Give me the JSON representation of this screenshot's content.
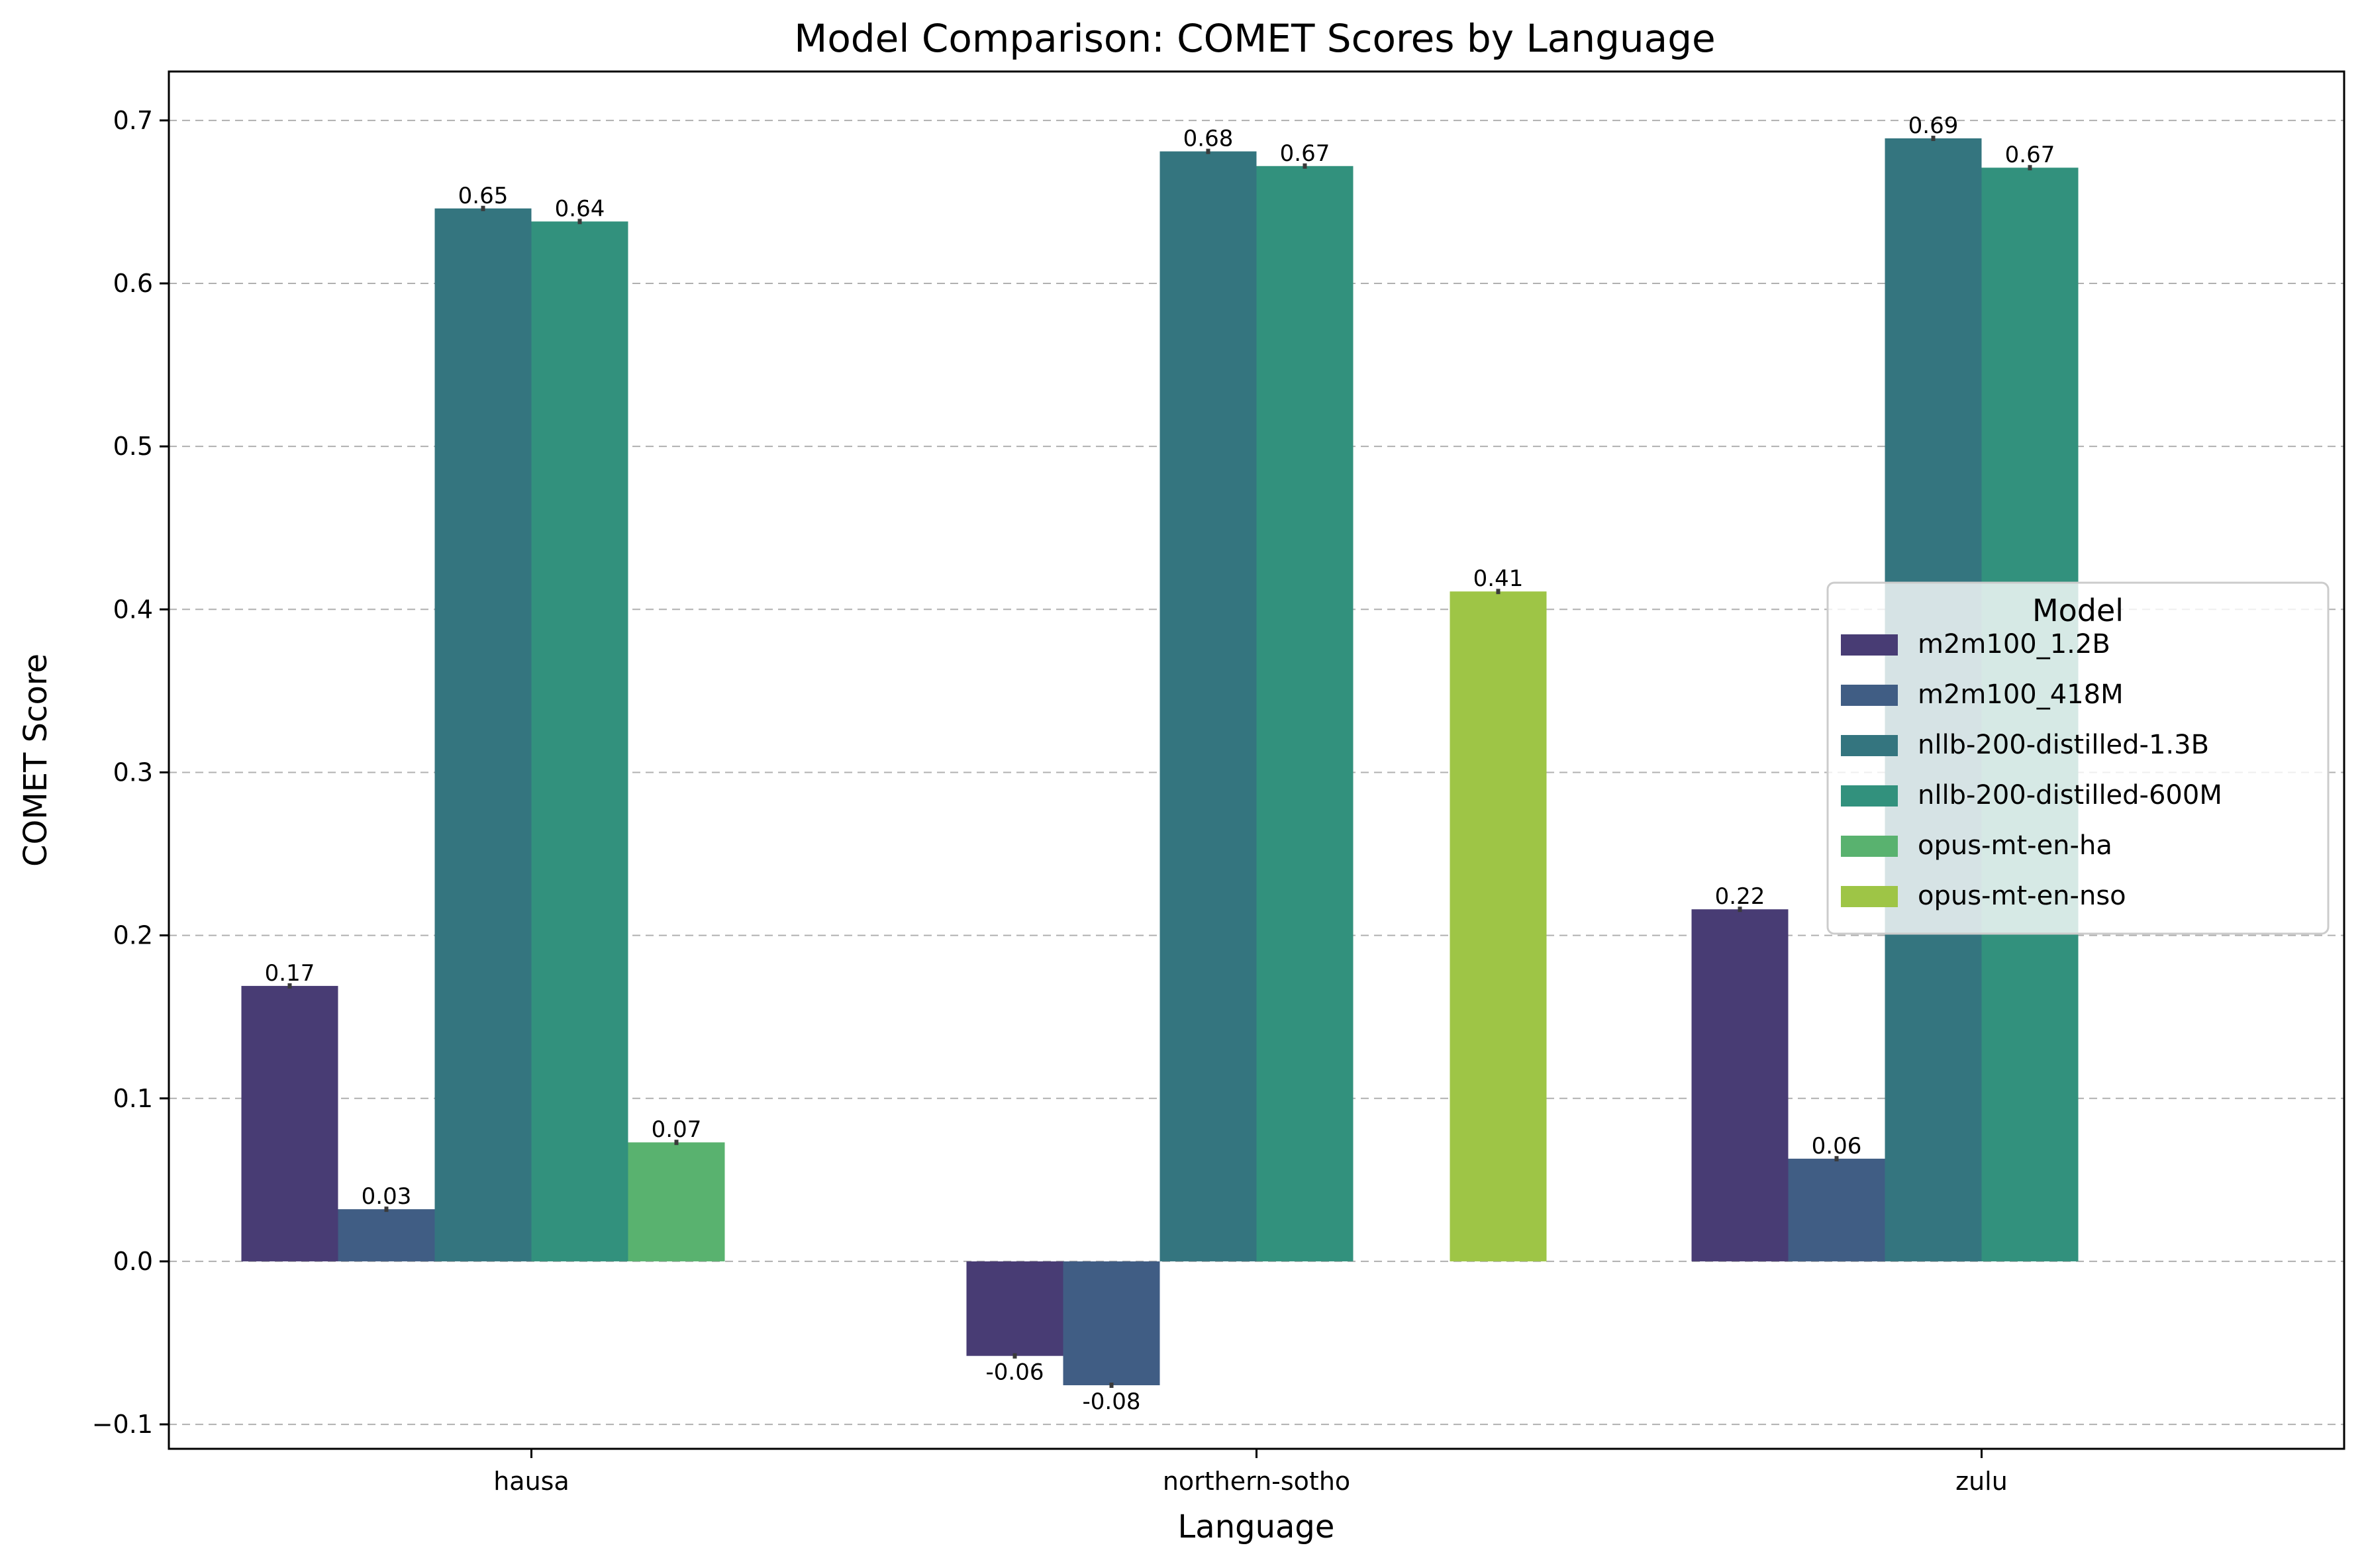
{
  "chart_data": {
    "type": "bar",
    "title": "Model Comparison: COMET Scores by Language",
    "xlabel": "Language",
    "ylabel": "COMET Score",
    "categories": [
      "hausa",
      "northern-sotho",
      "zulu"
    ],
    "ylim": [
      -0.115,
      0.73
    ],
    "yticks": [
      -0.1,
      0.0,
      0.1,
      0.2,
      0.3,
      0.4,
      0.5,
      0.6,
      0.7
    ],
    "ytick_labels": [
      "−0.1",
      "0.0",
      "0.1",
      "0.2",
      "0.3",
      "0.4",
      "0.5",
      "0.6",
      "0.7"
    ],
    "grid": "horizontal dashed",
    "legend": {
      "title": "Model",
      "placement": "center-right"
    },
    "series": [
      {
        "name": "m2m100_1.2B",
        "color": "#483c74",
        "values": [
          0.169,
          -0.058,
          0.216
        ],
        "labels": [
          "0.17",
          "-0.06",
          "0.22"
        ]
      },
      {
        "name": "m2m100_418M",
        "color": "#405d84",
        "values": [
          0.032,
          -0.076,
          0.063
        ],
        "labels": [
          "0.03",
          "-0.08",
          "0.06"
        ]
      },
      {
        "name": "nllb-200-distilled-1.3B",
        "color": "#34757f",
        "values": [
          0.646,
          0.681,
          0.689
        ],
        "labels": [
          "0.65",
          "0.68",
          "0.69"
        ]
      },
      {
        "name": "nllb-200-distilled-600M",
        "color": "#32917d",
        "values": [
          0.638,
          0.672,
          0.671
        ],
        "labels": [
          "0.64",
          "0.67",
          "0.67"
        ]
      },
      {
        "name": "opus-mt-en-ha",
        "color": "#59b26f",
        "values": [
          0.073,
          null,
          null
        ],
        "labels": [
          "0.07",
          "",
          ""
        ]
      },
      {
        "name": "opus-mt-en-nso",
        "color": "#9ec546",
        "values": [
          null,
          0.411,
          null
        ],
        "labels": [
          "",
          "0.41",
          ""
        ]
      }
    ]
  }
}
